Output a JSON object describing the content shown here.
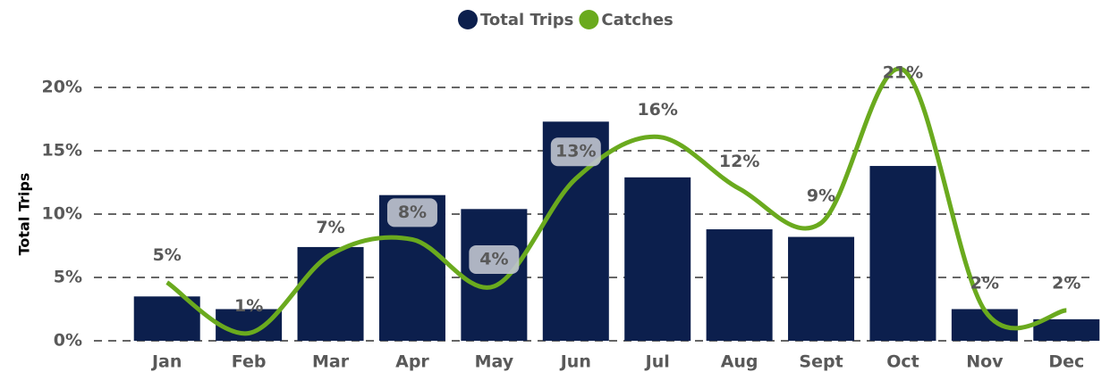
{
  "chart_data": {
    "type": "bar",
    "y_label": "Total Trips",
    "categories": [
      "Jan",
      "Feb",
      "Mar",
      "Apr",
      "May",
      "Jun",
      "Jul",
      "Aug",
      "Sept",
      "Oct",
      "Nov",
      "Dec"
    ],
    "series": [
      {
        "name": "Total Trips",
        "type": "bar",
        "color": "#0c1f4d",
        "values": [
          3.5,
          2.5,
          7.4,
          11.5,
          10.4,
          17.3,
          12.9,
          8.8,
          8.2,
          13.8,
          2.5,
          1.7
        ]
      },
      {
        "name": "Catches",
        "type": "line",
        "color": "#6aaa1e",
        "values": [
          4.6,
          0.6,
          6.8,
          8.0,
          4.3,
          12.8,
          16.1,
          12.0,
          9.3,
          21.4,
          2.4,
          2.4
        ],
        "value_labels": [
          "5%",
          "1%",
          "7%",
          "8%",
          "4%",
          "13%",
          "16%",
          "12%",
          "9%",
          "21%",
          "2%",
          "2%"
        ]
      }
    ],
    "ylim": [
      0,
      20
    ],
    "yticks": [
      {
        "value": 0,
        "label": "0%"
      },
      {
        "value": 5,
        "label": "5%"
      },
      {
        "value": 10,
        "label": "10%"
      },
      {
        "value": 15,
        "label": "15%"
      },
      {
        "value": 20,
        "label": "20%"
      }
    ],
    "grid": true,
    "legend": "top"
  }
}
